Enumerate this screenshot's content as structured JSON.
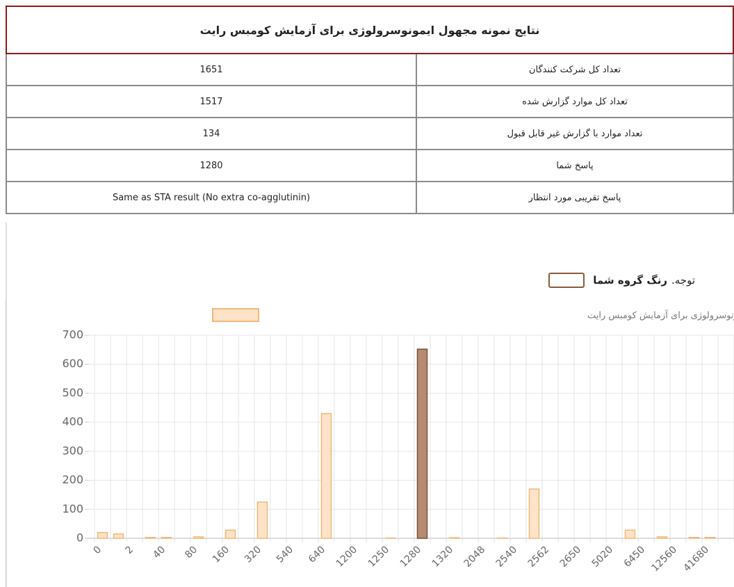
{
  "header": {
    "title": "نتایج نمونه مجهول ایمونوسرولوژی برای آزمایش کومبس رایت"
  },
  "table": {
    "rows": [
      [
        "تعداد کل شرکت کنندگان",
        1651
      ],
      [
        "تعداد کل موارد گزارش شده",
        1517
      ],
      [
        "تعداد موارد با گزارش غیر قابل قبول",
        134
      ],
      [
        "پاسخ شما",
        1280
      ],
      [
        "پاسخ تقریبی مورد انتظار",
        "Same as STA result (No extra co-agglutinin)"
      ]
    ]
  },
  "note": {
    "prefix": "توجه.",
    "bold": "رنگ گروه شما"
  },
  "chart_data": {
    "type": "bar",
    "categories": [
      "0",
      null,
      "2",
      null,
      "40",
      null,
      "80",
      null,
      "160",
      null,
      "320",
      null,
      "540",
      null,
      "640",
      null,
      "1200",
      null,
      "1250",
      null,
      "1280",
      null,
      "1320",
      null,
      "2048",
      null,
      "2540",
      null,
      "2562",
      null,
      "2650",
      null,
      "5020",
      null,
      "6450",
      null,
      "12560",
      null,
      "41680",
      null
    ],
    "series": [
      {
        "name": "نتایج نمونه مجهول ایمونوسرولوژی برای آزمایش کومبس رایت",
        "color": "#fde3c8",
        "border_color": "#f3b877",
        "values": [
          20,
          15,
          0,
          3,
          3,
          0,
          5,
          0,
          28,
          0,
          125,
          0,
          0,
          0,
          430,
          0,
          0,
          0,
          1,
          0,
          652,
          0,
          2,
          0,
          0,
          1,
          0,
          170,
          0,
          0,
          0,
          0,
          0,
          28,
          0,
          5,
          0,
          3,
          3,
          0
        ]
      }
    ],
    "highlight": {
      "category": "1280",
      "color": "#b58c72",
      "border_color": "#7a4f37"
    },
    "ylim": [
      0,
      700
    ],
    "yticks": [
      0,
      100,
      200,
      300,
      400,
      500,
      600,
      700
    ],
    "grid": true,
    "legend": "top"
  }
}
